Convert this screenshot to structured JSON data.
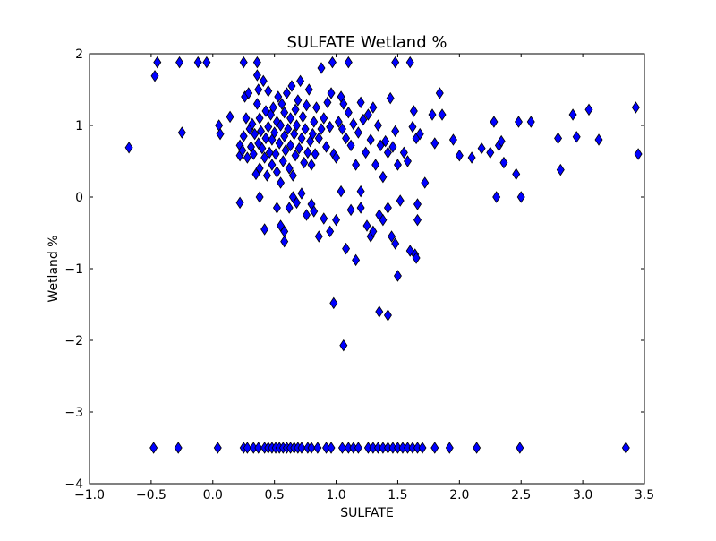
{
  "chart_data": {
    "type": "scatter",
    "title": "SULFATE Wetland %",
    "xlabel": "SULFATE",
    "ylabel": "Wetland %",
    "xlim": [
      -1.0,
      3.5
    ],
    "ylim": [
      -4,
      2
    ],
    "x_ticks": [
      -1.0,
      -0.5,
      0.0,
      0.5,
      1.0,
      1.5,
      2.0,
      2.5,
      3.0,
      3.5
    ],
    "x_tick_labels": [
      "−1.0",
      "−0.5",
      "0.0",
      "0.5",
      "1.0",
      "1.5",
      "2.0",
      "2.5",
      "3.0",
      "3.5"
    ],
    "y_ticks": [
      -4,
      -3,
      -2,
      -1,
      0,
      1,
      2
    ],
    "y_tick_labels": [
      "−4",
      "−3",
      "−2",
      "−1",
      "0",
      "1",
      "2"
    ],
    "grid": false,
    "marker": "diamond",
    "marker_color": "#0000ff",
    "marker_edge_color": "#000000",
    "series": [
      {
        "points": [
          [
            -0.45,
            1.88
          ],
          [
            -0.47,
            1.69
          ],
          [
            -0.27,
            1.88
          ],
          [
            -0.12,
            1.88
          ],
          [
            -0.05,
            1.88
          ],
          [
            0.25,
            1.88
          ],
          [
            0.36,
            1.88
          ],
          [
            0.97,
            1.88
          ],
          [
            1.1,
            1.88
          ],
          [
            1.48,
            1.88
          ],
          [
            1.6,
            1.88
          ],
          [
            0.88,
            1.8
          ],
          [
            0.36,
            1.7
          ],
          [
            -0.25,
            0.9
          ],
          [
            -0.68,
            0.69
          ],
          [
            0.05,
            1.0
          ],
          [
            0.06,
            0.88
          ],
          [
            0.14,
            1.12
          ],
          [
            0.22,
            0.72
          ],
          [
            0.22,
            0.58
          ],
          [
            0.24,
            0.65
          ],
          [
            0.25,
            0.85
          ],
          [
            0.26,
            1.4
          ],
          [
            0.27,
            1.1
          ],
          [
            0.28,
            0.55
          ],
          [
            0.29,
            1.45
          ],
          [
            0.3,
            0.95
          ],
          [
            0.31,
            0.7
          ],
          [
            0.32,
            1.02
          ],
          [
            0.33,
            0.6
          ],
          [
            0.34,
            0.88
          ],
          [
            0.35,
            0.32
          ],
          [
            0.36,
            1.3
          ],
          [
            0.37,
            1.5
          ],
          [
            0.37,
            0.75
          ],
          [
            0.38,
            1.1
          ],
          [
            0.38,
            0.4
          ],
          [
            0.39,
            0.92
          ],
          [
            0.4,
            0.68
          ],
          [
            0.41,
            1.62
          ],
          [
            0.42,
            0.55
          ],
          [
            0.43,
            1.2
          ],
          [
            0.43,
            0.82
          ],
          [
            0.44,
            0.3
          ],
          [
            0.45,
            1.48
          ],
          [
            0.45,
            0.98
          ],
          [
            0.46,
            0.62
          ],
          [
            0.47,
            1.15
          ],
          [
            0.48,
            0.45
          ],
          [
            0.48,
            0.8
          ],
          [
            0.49,
            1.25
          ],
          [
            0.5,
            0.9
          ],
          [
            0.51,
            0.6
          ],
          [
            0.52,
            1.05
          ],
          [
            0.52,
            0.35
          ],
          [
            0.53,
            1.4
          ],
          [
            0.54,
            0.75
          ],
          [
            0.55,
            0.2
          ],
          [
            0.55,
            1.0
          ],
          [
            0.56,
            1.3
          ],
          [
            0.57,
            0.5
          ],
          [
            0.58,
            0.85
          ],
          [
            0.58,
            1.18
          ],
          [
            0.59,
            0.65
          ],
          [
            0.6,
            1.45
          ],
          [
            0.61,
            0.95
          ],
          [
            0.62,
            0.4
          ],
          [
            0.63,
            1.1
          ],
          [
            0.63,
            0.72
          ],
          [
            0.64,
            1.55
          ],
          [
            0.65,
            0.3
          ],
          [
            0.66,
            0.88
          ],
          [
            0.67,
            1.22
          ],
          [
            0.67,
            0.58
          ],
          [
            0.68,
            1.0
          ],
          [
            0.69,
            1.35
          ],
          [
            0.7,
            0.68
          ],
          [
            0.71,
            1.62
          ],
          [
            0.72,
            0.82
          ],
          [
            0.73,
            1.12
          ],
          [
            0.74,
            0.48
          ],
          [
            0.75,
            0.95
          ],
          [
            0.76,
            1.28
          ],
          [
            0.77,
            0.62
          ],
          [
            0.78,
            1.5
          ],
          [
            0.79,
            0.78
          ],
          [
            0.8,
            0.45
          ],
          [
            0.81,
            0.88
          ],
          [
            0.82,
            1.05
          ],
          [
            0.83,
            0.6
          ],
          [
            0.84,
            1.25
          ],
          [
            0.86,
            0.82
          ],
          [
            0.88,
            0.95
          ],
          [
            0.9,
            1.1
          ],
          [
            0.92,
            0.7
          ],
          [
            0.93,
            1.32
          ],
          [
            0.95,
            0.98
          ],
          [
            0.96,
            1.45
          ],
          [
            0.98,
            0.6
          ],
          [
            1.0,
            0.55
          ],
          [
            1.02,
            1.05
          ],
          [
            1.04,
            1.4
          ],
          [
            1.05,
            0.95
          ],
          [
            1.06,
            1.3
          ],
          [
            1.08,
            0.82
          ],
          [
            1.1,
            1.18
          ],
          [
            1.12,
            0.72
          ],
          [
            1.14,
            1.02
          ],
          [
            1.16,
            0.45
          ],
          [
            1.18,
            0.9
          ],
          [
            1.2,
            1.32
          ],
          [
            1.22,
            1.08
          ],
          [
            1.24,
            0.62
          ],
          [
            1.26,
            1.15
          ],
          [
            1.28,
            0.8
          ],
          [
            1.3,
            1.25
          ],
          [
            1.32,
            0.45
          ],
          [
            1.34,
            1.0
          ],
          [
            1.36,
            0.72
          ],
          [
            1.38,
            0.28
          ],
          [
            1.4,
            0.78
          ],
          [
            1.42,
            0.62
          ],
          [
            1.44,
            1.38
          ],
          [
            1.46,
            0.7
          ],
          [
            1.48,
            0.92
          ],
          [
            1.5,
            0.45
          ],
          [
            1.55,
            0.62
          ],
          [
            1.58,
            0.5
          ],
          [
            1.62,
            0.98
          ],
          [
            1.63,
            1.2
          ],
          [
            1.65,
            0.82
          ],
          [
            1.68,
            0.88
          ],
          [
            1.72,
            0.2
          ],
          [
            1.78,
            1.15
          ],
          [
            1.8,
            0.75
          ],
          [
            1.84,
            1.45
          ],
          [
            1.86,
            1.15
          ],
          [
            1.95,
            0.8
          ],
          [
            2.0,
            0.58
          ],
          [
            2.1,
            0.55
          ],
          [
            2.18,
            0.68
          ],
          [
            2.25,
            0.62
          ],
          [
            2.28,
            1.05
          ],
          [
            2.32,
            0.72
          ],
          [
            2.34,
            0.78
          ],
          [
            2.36,
            0.48
          ],
          [
            2.46,
            0.32
          ],
          [
            2.48,
            1.05
          ],
          [
            2.58,
            1.05
          ],
          [
            2.8,
            0.82
          ],
          [
            2.82,
            0.38
          ],
          [
            2.92,
            1.15
          ],
          [
            2.95,
            0.84
          ],
          [
            3.05,
            1.22
          ],
          [
            3.13,
            0.8
          ],
          [
            3.43,
            1.25
          ],
          [
            3.45,
            0.6
          ],
          [
            2.3,
            0.0
          ],
          [
            2.5,
            0.0
          ],
          [
            0.22,
            -0.08
          ],
          [
            0.38,
            0.0
          ],
          [
            0.42,
            -0.45
          ],
          [
            0.52,
            -0.15
          ],
          [
            0.55,
            -0.4
          ],
          [
            0.58,
            -0.62
          ],
          [
            0.58,
            -0.48
          ],
          [
            0.62,
            -0.15
          ],
          [
            0.65,
            0.0
          ],
          [
            0.68,
            -0.08
          ],
          [
            0.72,
            0.05
          ],
          [
            0.76,
            -0.25
          ],
          [
            0.8,
            -0.1
          ],
          [
            0.82,
            -0.2
          ],
          [
            0.86,
            -0.55
          ],
          [
            0.9,
            -0.3
          ],
          [
            0.95,
            -0.48
          ],
          [
            1.0,
            -0.32
          ],
          [
            1.04,
            0.08
          ],
          [
            1.08,
            -0.72
          ],
          [
            1.12,
            -0.18
          ],
          [
            1.16,
            -0.88
          ],
          [
            1.2,
            0.08
          ],
          [
            1.2,
            -0.15
          ],
          [
            1.25,
            -0.4
          ],
          [
            1.28,
            -0.55
          ],
          [
            1.3,
            -0.48
          ],
          [
            1.35,
            -0.25
          ],
          [
            1.38,
            -0.32
          ],
          [
            1.42,
            -0.15
          ],
          [
            1.45,
            -0.55
          ],
          [
            1.48,
            -0.65
          ],
          [
            1.5,
            -1.1
          ],
          [
            1.52,
            -0.05
          ],
          [
            1.6,
            -0.75
          ],
          [
            1.64,
            -0.8
          ],
          [
            1.65,
            -0.85
          ],
          [
            1.66,
            -0.1
          ],
          [
            1.66,
            -0.32
          ],
          [
            1.35,
            -1.6
          ],
          [
            1.42,
            -1.65
          ],
          [
            0.98,
            -1.48
          ],
          [
            1.06,
            -2.07
          ],
          [
            -0.48,
            -3.5
          ],
          [
            -0.28,
            -3.5
          ],
          [
            0.04,
            -3.5
          ],
          [
            0.25,
            -3.5
          ],
          [
            0.28,
            -3.5
          ],
          [
            0.33,
            -3.5
          ],
          [
            0.37,
            -3.5
          ],
          [
            0.42,
            -3.5
          ],
          [
            0.45,
            -3.5
          ],
          [
            0.48,
            -3.5
          ],
          [
            0.51,
            -3.5
          ],
          [
            0.54,
            -3.5
          ],
          [
            0.57,
            -3.5
          ],
          [
            0.6,
            -3.5
          ],
          [
            0.63,
            -3.5
          ],
          [
            0.66,
            -3.5
          ],
          [
            0.69,
            -3.5
          ],
          [
            0.72,
            -3.5
          ],
          [
            0.77,
            -3.5
          ],
          [
            0.8,
            -3.5
          ],
          [
            0.85,
            -3.5
          ],
          [
            0.92,
            -3.5
          ],
          [
            0.96,
            -3.5
          ],
          [
            1.05,
            -3.5
          ],
          [
            1.1,
            -3.5
          ],
          [
            1.14,
            -3.5
          ],
          [
            1.18,
            -3.5
          ],
          [
            1.26,
            -3.5
          ],
          [
            1.3,
            -3.5
          ],
          [
            1.34,
            -3.5
          ],
          [
            1.38,
            -3.5
          ],
          [
            1.42,
            -3.5
          ],
          [
            1.46,
            -3.5
          ],
          [
            1.5,
            -3.5
          ],
          [
            1.54,
            -3.5
          ],
          [
            1.58,
            -3.5
          ],
          [
            1.62,
            -3.5
          ],
          [
            1.66,
            -3.5
          ],
          [
            1.7,
            -3.5
          ],
          [
            1.8,
            -3.5
          ],
          [
            1.92,
            -3.5
          ],
          [
            2.14,
            -3.5
          ],
          [
            2.49,
            -3.5
          ],
          [
            3.35,
            -3.5
          ]
        ]
      }
    ]
  }
}
